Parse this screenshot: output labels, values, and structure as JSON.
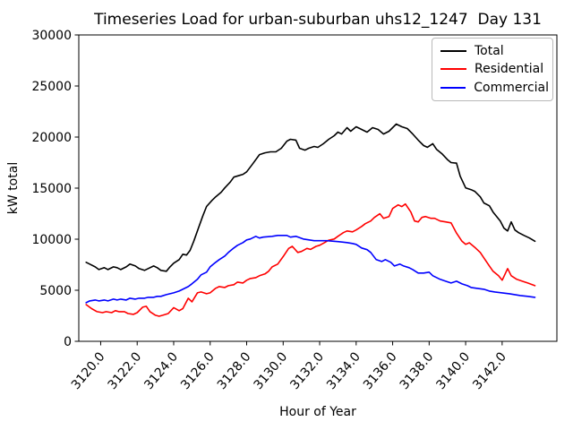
{
  "chart_data": {
    "type": "line",
    "title": "Timeseries Load for urban-suburban uhs12_1247  Day 131",
    "xlabel": "Hour of Year",
    "ylabel": "kW total",
    "xlim": [
      3118.8,
      3145.0
    ],
    "ylim": [
      0,
      30000
    ],
    "xtick_values": [
      3120,
      3122,
      3124,
      3126,
      3128,
      3130,
      3132,
      3134,
      3136,
      3138,
      3140,
      3142
    ],
    "xtick_labels": [
      "3120.0",
      "3122.0",
      "3124.0",
      "3126.0",
      "3128.0",
      "3130.0",
      "3132.0",
      "3134.0",
      "3136.0",
      "3138.0",
      "3140.0",
      "3142.0"
    ],
    "ytick_values": [
      0,
      5000,
      10000,
      15000,
      20000,
      25000,
      30000
    ],
    "ytick_labels": [
      "0",
      "5000",
      "10000",
      "15000",
      "20000",
      "25000",
      "30000"
    ],
    "grid": false,
    "legend": {
      "position": "upper right",
      "entries": [
        "Total",
        "Residential",
        "Commercial"
      ]
    },
    "series": [
      {
        "name": "Total",
        "color": "#000000",
        "points": [
          [
            3119.2,
            7740
          ],
          [
            3119.4,
            7560
          ],
          [
            3119.7,
            7290
          ],
          [
            3119.9,
            7030
          ],
          [
            3120.2,
            7210
          ],
          [
            3120.4,
            7030
          ],
          [
            3120.7,
            7290
          ],
          [
            3120.9,
            7210
          ],
          [
            3121.1,
            7030
          ],
          [
            3121.4,
            7290
          ],
          [
            3121.6,
            7560
          ],
          [
            3121.9,
            7380
          ],
          [
            3122.1,
            7120
          ],
          [
            3122.4,
            6950
          ],
          [
            3122.6,
            7120
          ],
          [
            3122.9,
            7380
          ],
          [
            3123.1,
            7210
          ],
          [
            3123.3,
            6950
          ],
          [
            3123.6,
            6860
          ],
          [
            3123.8,
            7290
          ],
          [
            3124.0,
            7650
          ],
          [
            3124.3,
            8000
          ],
          [
            3124.5,
            8530
          ],
          [
            3124.7,
            8450
          ],
          [
            3124.9,
            8900
          ],
          [
            3125.1,
            9800
          ],
          [
            3125.4,
            11300
          ],
          [
            3125.6,
            12300
          ],
          [
            3125.8,
            13200
          ],
          [
            3126.1,
            13800
          ],
          [
            3126.3,
            14150
          ],
          [
            3126.6,
            14600
          ],
          [
            3126.8,
            15030
          ],
          [
            3127.1,
            15600
          ],
          [
            3127.3,
            16080
          ],
          [
            3127.6,
            16250
          ],
          [
            3127.8,
            16350
          ],
          [
            3128.0,
            16600
          ],
          [
            3128.3,
            17300
          ],
          [
            3128.7,
            18280
          ],
          [
            3129.0,
            18460
          ],
          [
            3129.3,
            18550
          ],
          [
            3129.6,
            18550
          ],
          [
            3129.9,
            18900
          ],
          [
            3130.2,
            19600
          ],
          [
            3130.4,
            19780
          ],
          [
            3130.7,
            19700
          ],
          [
            3130.9,
            18900
          ],
          [
            3131.2,
            18720
          ],
          [
            3131.4,
            18900
          ],
          [
            3131.7,
            19080
          ],
          [
            3131.9,
            18990
          ],
          [
            3132.2,
            19340
          ],
          [
            3132.5,
            19780
          ],
          [
            3132.8,
            20130
          ],
          [
            3133.0,
            20480
          ],
          [
            3133.2,
            20300
          ],
          [
            3133.5,
            20920
          ],
          [
            3133.7,
            20570
          ],
          [
            3134.0,
            21010
          ],
          [
            3134.3,
            20750
          ],
          [
            3134.6,
            20480
          ],
          [
            3134.9,
            20920
          ],
          [
            3135.2,
            20750
          ],
          [
            3135.5,
            20300
          ],
          [
            3135.8,
            20570
          ],
          [
            3136.2,
            21270
          ],
          [
            3136.5,
            21010
          ],
          [
            3136.8,
            20830
          ],
          [
            3137.1,
            20300
          ],
          [
            3137.4,
            19700
          ],
          [
            3137.7,
            19170
          ],
          [
            3137.9,
            19000
          ],
          [
            3138.2,
            19350
          ],
          [
            3138.4,
            18810
          ],
          [
            3138.7,
            18370
          ],
          [
            3139.0,
            17800
          ],
          [
            3139.2,
            17500
          ],
          [
            3139.5,
            17450
          ],
          [
            3139.7,
            16170
          ],
          [
            3140.0,
            15030
          ],
          [
            3140.3,
            14850
          ],
          [
            3140.5,
            14680
          ],
          [
            3140.8,
            14150
          ],
          [
            3141.0,
            13540
          ],
          [
            3141.3,
            13270
          ],
          [
            3141.5,
            12660
          ],
          [
            3141.9,
            11780
          ],
          [
            3142.1,
            11080
          ],
          [
            3142.3,
            10810
          ],
          [
            3142.5,
            11690
          ],
          [
            3142.7,
            10900
          ],
          [
            3142.9,
            10640
          ],
          [
            3143.2,
            10370
          ],
          [
            3143.5,
            10110
          ],
          [
            3143.8,
            9800
          ]
        ]
      },
      {
        "name": "Residential",
        "color": "#ff0000",
        "points": [
          [
            3119.2,
            3600
          ],
          [
            3119.5,
            3200
          ],
          [
            3119.8,
            2900
          ],
          [
            3120.1,
            2810
          ],
          [
            3120.3,
            2900
          ],
          [
            3120.6,
            2810
          ],
          [
            3120.8,
            3000
          ],
          [
            3121.0,
            2900
          ],
          [
            3121.3,
            2900
          ],
          [
            3121.5,
            2720
          ],
          [
            3121.8,
            2640
          ],
          [
            3122.0,
            2810
          ],
          [
            3122.3,
            3340
          ],
          [
            3122.5,
            3430
          ],
          [
            3122.7,
            2900
          ],
          [
            3123.0,
            2550
          ],
          [
            3123.2,
            2460
          ],
          [
            3123.4,
            2550
          ],
          [
            3123.7,
            2720
          ],
          [
            3124.0,
            3300
          ],
          [
            3124.3,
            3000
          ],
          [
            3124.5,
            3200
          ],
          [
            3124.8,
            4220
          ],
          [
            3125.0,
            3870
          ],
          [
            3125.3,
            4750
          ],
          [
            3125.5,
            4830
          ],
          [
            3125.8,
            4660
          ],
          [
            3126.0,
            4750
          ],
          [
            3126.3,
            5190
          ],
          [
            3126.5,
            5360
          ],
          [
            3126.8,
            5270
          ],
          [
            3127.0,
            5450
          ],
          [
            3127.3,
            5540
          ],
          [
            3127.5,
            5800
          ],
          [
            3127.8,
            5710
          ],
          [
            3128.0,
            5980
          ],
          [
            3128.2,
            6150
          ],
          [
            3128.5,
            6240
          ],
          [
            3128.7,
            6420
          ],
          [
            3129.0,
            6600
          ],
          [
            3129.2,
            6860
          ],
          [
            3129.4,
            7290
          ],
          [
            3129.7,
            7560
          ],
          [
            3130.0,
            8300
          ],
          [
            3130.3,
            9100
          ],
          [
            3130.5,
            9300
          ],
          [
            3130.8,
            8700
          ],
          [
            3131.0,
            8800
          ],
          [
            3131.3,
            9100
          ],
          [
            3131.5,
            9000
          ],
          [
            3131.8,
            9300
          ],
          [
            3132.0,
            9400
          ],
          [
            3132.3,
            9700
          ],
          [
            3132.5,
            9900
          ],
          [
            3132.8,
            10020
          ],
          [
            3133.0,
            10280
          ],
          [
            3133.3,
            10640
          ],
          [
            3133.5,
            10810
          ],
          [
            3133.8,
            10720
          ],
          [
            3134.0,
            10900
          ],
          [
            3134.3,
            11250
          ],
          [
            3134.5,
            11520
          ],
          [
            3134.8,
            11780
          ],
          [
            3135.0,
            12130
          ],
          [
            3135.3,
            12490
          ],
          [
            3135.5,
            12040
          ],
          [
            3135.8,
            12220
          ],
          [
            3136.0,
            13010
          ],
          [
            3136.3,
            13360
          ],
          [
            3136.5,
            13190
          ],
          [
            3136.7,
            13450
          ],
          [
            3137.0,
            12660
          ],
          [
            3137.2,
            11780
          ],
          [
            3137.4,
            11690
          ],
          [
            3137.6,
            12130
          ],
          [
            3137.8,
            12220
          ],
          [
            3138.1,
            12040
          ],
          [
            3138.3,
            12040
          ],
          [
            3138.6,
            11780
          ],
          [
            3138.9,
            11690
          ],
          [
            3139.2,
            11600
          ],
          [
            3139.5,
            10600
          ],
          [
            3139.8,
            9800
          ],
          [
            3140.0,
            9500
          ],
          [
            3140.2,
            9650
          ],
          [
            3140.5,
            9200
          ],
          [
            3140.8,
            8700
          ],
          [
            3141.0,
            8170
          ],
          [
            3141.3,
            7380
          ],
          [
            3141.5,
            6860
          ],
          [
            3141.8,
            6420
          ],
          [
            3142.0,
            5980
          ],
          [
            3142.3,
            7120
          ],
          [
            3142.5,
            6420
          ],
          [
            3142.8,
            6070
          ],
          [
            3143.1,
            5890
          ],
          [
            3143.4,
            5710
          ],
          [
            3143.8,
            5450
          ]
        ]
      },
      {
        "name": "Commercial",
        "color": "#0000ff",
        "points": [
          [
            3119.2,
            3780
          ],
          [
            3119.4,
            3960
          ],
          [
            3119.7,
            4040
          ],
          [
            3119.9,
            3960
          ],
          [
            3120.2,
            4040
          ],
          [
            3120.4,
            3960
          ],
          [
            3120.7,
            4130
          ],
          [
            3120.9,
            4040
          ],
          [
            3121.1,
            4130
          ],
          [
            3121.4,
            4040
          ],
          [
            3121.6,
            4220
          ],
          [
            3121.9,
            4130
          ],
          [
            3122.1,
            4220
          ],
          [
            3122.4,
            4220
          ],
          [
            3122.6,
            4310
          ],
          [
            3122.9,
            4310
          ],
          [
            3123.1,
            4400
          ],
          [
            3123.3,
            4400
          ],
          [
            3123.6,
            4570
          ],
          [
            3123.8,
            4660
          ],
          [
            3124.0,
            4750
          ],
          [
            3124.3,
            4920
          ],
          [
            3124.5,
            5100
          ],
          [
            3124.8,
            5360
          ],
          [
            3125.0,
            5630
          ],
          [
            3125.3,
            6070
          ],
          [
            3125.5,
            6510
          ],
          [
            3125.8,
            6770
          ],
          [
            3126.0,
            7290
          ],
          [
            3126.3,
            7740
          ],
          [
            3126.5,
            8000
          ],
          [
            3126.8,
            8350
          ],
          [
            3127.0,
            8700
          ],
          [
            3127.3,
            9140
          ],
          [
            3127.5,
            9400
          ],
          [
            3127.8,
            9670
          ],
          [
            3128.0,
            9930
          ],
          [
            3128.2,
            10020
          ],
          [
            3128.5,
            10280
          ],
          [
            3128.7,
            10110
          ],
          [
            3128.9,
            10200
          ],
          [
            3129.4,
            10280
          ],
          [
            3129.7,
            10370
          ],
          [
            3130.2,
            10370
          ],
          [
            3130.4,
            10200
          ],
          [
            3130.7,
            10280
          ],
          [
            3131.1,
            10020
          ],
          [
            3131.7,
            9850
          ],
          [
            3132.4,
            9850
          ],
          [
            3133.0,
            9760
          ],
          [
            3133.5,
            9670
          ],
          [
            3133.8,
            9580
          ],
          [
            3134.0,
            9490
          ],
          [
            3134.3,
            9140
          ],
          [
            3134.6,
            8970
          ],
          [
            3134.8,
            8700
          ],
          [
            3135.1,
            8000
          ],
          [
            3135.4,
            7820
          ],
          [
            3135.6,
            8000
          ],
          [
            3135.9,
            7740
          ],
          [
            3136.1,
            7380
          ],
          [
            3136.4,
            7560
          ],
          [
            3136.6,
            7380
          ],
          [
            3136.9,
            7210
          ],
          [
            3137.1,
            7030
          ],
          [
            3137.4,
            6680
          ],
          [
            3137.7,
            6680
          ],
          [
            3138.0,
            6770
          ],
          [
            3138.2,
            6420
          ],
          [
            3138.6,
            6070
          ],
          [
            3138.9,
            5890
          ],
          [
            3139.2,
            5710
          ],
          [
            3139.5,
            5890
          ],
          [
            3139.8,
            5620
          ],
          [
            3140.1,
            5450
          ],
          [
            3140.3,
            5270
          ],
          [
            3140.6,
            5190
          ],
          [
            3141.0,
            5100
          ],
          [
            3141.3,
            4920
          ],
          [
            3141.6,
            4830
          ],
          [
            3142.0,
            4750
          ],
          [
            3142.4,
            4660
          ],
          [
            3142.7,
            4570
          ],
          [
            3143.0,
            4480
          ],
          [
            3143.4,
            4400
          ],
          [
            3143.8,
            4310
          ]
        ]
      }
    ]
  }
}
